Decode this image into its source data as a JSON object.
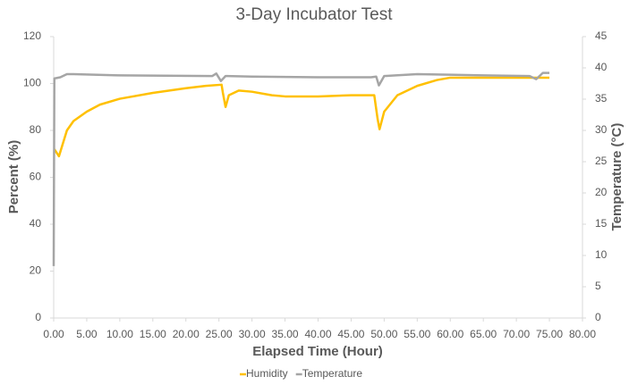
{
  "chart_data": {
    "type": "line",
    "title": "3-Day Incubator Test",
    "x_label": "Elapsed Time (Hour)",
    "y_label": "Percent (%)",
    "y2_label": "Temperature (°C)",
    "xlim": [
      0,
      80
    ],
    "xticks": [
      {
        "value": 0,
        "label": "0.00"
      },
      {
        "value": 5,
        "label": "5.00"
      },
      {
        "value": 10,
        "label": "10.00"
      },
      {
        "value": 15,
        "label": "15.00"
      },
      {
        "value": 20,
        "label": "20.00"
      },
      {
        "value": 25,
        "label": "25.00"
      },
      {
        "value": 30,
        "label": "30.00"
      },
      {
        "value": 35,
        "label": "35.00"
      },
      {
        "value": 40,
        "label": "40.00"
      },
      {
        "value": 45,
        "label": "45.00"
      },
      {
        "value": 50,
        "label": "50.00"
      },
      {
        "value": 55,
        "label": "55.00"
      },
      {
        "value": 60,
        "label": "60.00"
      },
      {
        "value": 65,
        "label": "65.00"
      },
      {
        "value": 70,
        "label": "70.00"
      },
      {
        "value": 75,
        "label": "75.00"
      },
      {
        "value": 80,
        "label": "80.00"
      }
    ],
    "ylim": [
      0,
      120
    ],
    "yticks": [
      0,
      20,
      40,
      60,
      80,
      100,
      120
    ],
    "y2lim": [
      0,
      45
    ],
    "y2ticks": [
      0,
      5,
      10,
      15,
      20,
      25,
      30,
      35,
      40,
      45
    ],
    "legend": "bottom",
    "series": [
      {
        "name": "Humidity",
        "color": "#FFC000",
        "x": [
          0.1,
          0.8,
          2,
          3,
          5,
          7,
          10,
          15,
          20,
          23,
          25.4,
          25.6,
          26,
          26.5,
          28,
          30,
          33,
          35,
          40,
          45,
          48.5,
          49,
          49.3,
          50,
          52,
          55,
          58,
          60,
          65,
          70,
          75
        ],
        "values": [
          72,
          69,
          80,
          84,
          88,
          91,
          93.5,
          96,
          98,
          99,
          99.5,
          96,
          90,
          95,
          97,
          96.5,
          95,
          94.5,
          94.5,
          95,
          95,
          85,
          80.5,
          88,
          95,
          99,
          101.5,
          102.5,
          102.5,
          102.5,
          102.5
        ]
      },
      {
        "name": "Temperature",
        "color": "#A5A5A5",
        "axis": "y2",
        "x": [
          0,
          0.1,
          1,
          2,
          3,
          10,
          24,
          24.6,
          25.3,
          26,
          30,
          40,
          48,
          48.8,
          49.2,
          50,
          55,
          65,
          72,
          73,
          74,
          75
        ],
        "values": [
          8.3,
          38.3,
          38.5,
          39,
          39,
          38.8,
          38.7,
          39.1,
          37.9,
          38.7,
          38.6,
          38.5,
          38.5,
          38.6,
          37.2,
          38.7,
          39,
          38.8,
          38.7,
          38.2,
          39.2,
          39.2
        ]
      }
    ]
  }
}
